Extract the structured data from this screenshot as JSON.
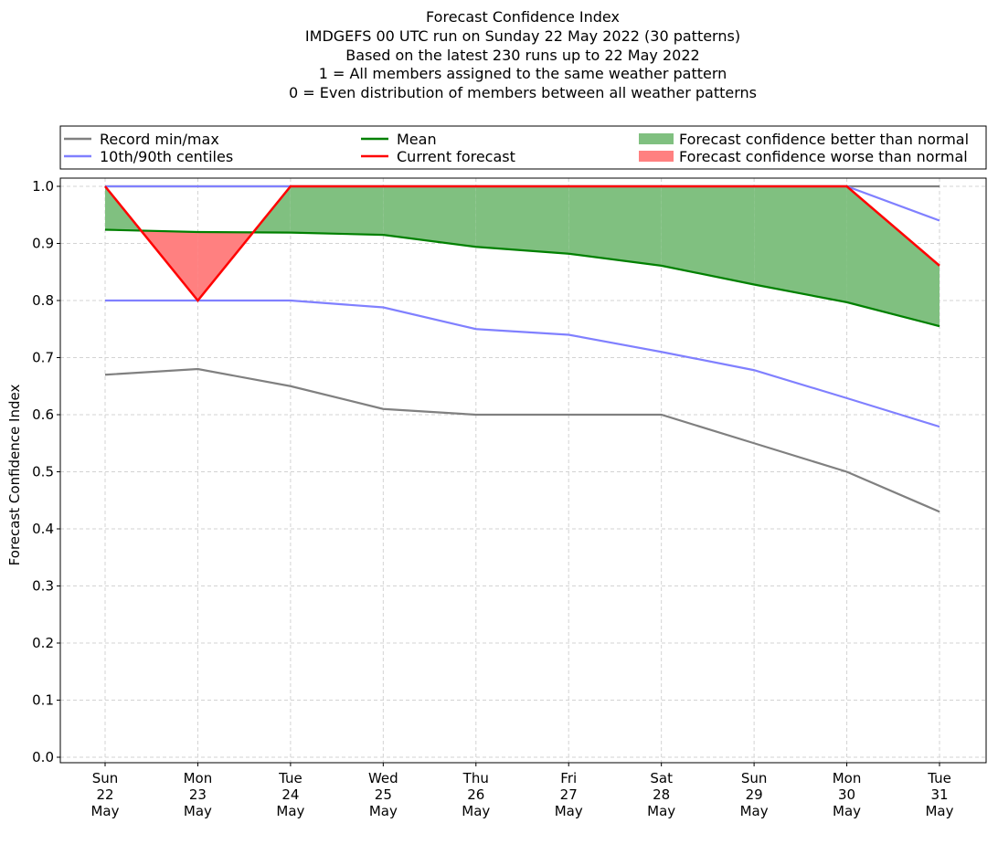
{
  "chart_data": {
    "type": "line",
    "title_lines": [
      "Forecast Confidence Index",
      "IMDGEFS 00 UTC run on Sunday 22 May 2022 (30 patterns)",
      "Based on the latest 230 runs up to 22 May 2022",
      "1 = All members assigned to the same weather pattern",
      "0 = Even distribution of members between all weather patterns"
    ],
    "ylabel": "Forecast Confidence Index",
    "xlabel": "",
    "ylim": [
      -0.01,
      1.01
    ],
    "yticks": [
      "0.0",
      "0.1",
      "0.2",
      "0.3",
      "0.4",
      "0.5",
      "0.6",
      "0.7",
      "0.8",
      "0.9",
      "1.0"
    ],
    "grid": true,
    "categories": [
      [
        "Sun",
        "22",
        "May"
      ],
      [
        "Mon",
        "23",
        "May"
      ],
      [
        "Tue",
        "24",
        "May"
      ],
      [
        "Wed",
        "25",
        "May"
      ],
      [
        "Thu",
        "26",
        "May"
      ],
      [
        "Fri",
        "27",
        "May"
      ],
      [
        "Sat",
        "28",
        "May"
      ],
      [
        "Sun",
        "29",
        "May"
      ],
      [
        "Mon",
        "30",
        "May"
      ],
      [
        "Tue",
        "31",
        "May"
      ]
    ],
    "series": [
      {
        "name": "Record min",
        "color": "#808080",
        "values": [
          0.67,
          0.68,
          0.65,
          0.61,
          0.6,
          0.6,
          0.6,
          0.55,
          0.5,
          0.43
        ]
      },
      {
        "name": "Record max",
        "color": "#808080",
        "values": [
          1.0,
          1.0,
          1.0,
          1.0,
          1.0,
          1.0,
          1.0,
          1.0,
          1.0,
          1.0
        ]
      },
      {
        "name": "10th centile",
        "color": "#8080ff",
        "values": [
          0.8,
          0.8,
          0.8,
          0.788,
          0.75,
          0.74,
          0.71,
          0.678,
          0.629,
          0.579
        ]
      },
      {
        "name": "90th centile",
        "color": "#8080ff",
        "values": [
          1.0,
          1.0,
          1.0,
          1.0,
          1.0,
          1.0,
          1.0,
          1.0,
          1.0,
          0.94
        ]
      },
      {
        "name": "Mean",
        "color": "#008000",
        "values": [
          0.924,
          0.92,
          0.919,
          0.915,
          0.894,
          0.882,
          0.861,
          0.828,
          0.797,
          0.755
        ]
      },
      {
        "name": "Current forecast",
        "color": "#ff0000",
        "values": [
          1.0,
          0.8,
          1.0,
          1.0,
          1.0,
          1.0,
          1.0,
          1.0,
          1.0,
          0.861
        ]
      }
    ],
    "fills": {
      "better_color": "#80c080",
      "worse_color": "#ff8080"
    },
    "legend": {
      "placement": "top",
      "entries": [
        {
          "label": "Record min/max",
          "color": "#808080",
          "kind": "line"
        },
        {
          "label": "10th/90th centiles",
          "color": "#8080ff",
          "kind": "line"
        },
        {
          "label": "Mean",
          "color": "#008000",
          "kind": "line"
        },
        {
          "label": "Current forecast",
          "color": "#ff0000",
          "kind": "line"
        },
        {
          "label": "Forecast confidence better than normal",
          "color": "#80c080",
          "kind": "patch"
        },
        {
          "label": "Forecast confidence worse than normal",
          "color": "#ff8080",
          "kind": "patch"
        }
      ]
    }
  }
}
